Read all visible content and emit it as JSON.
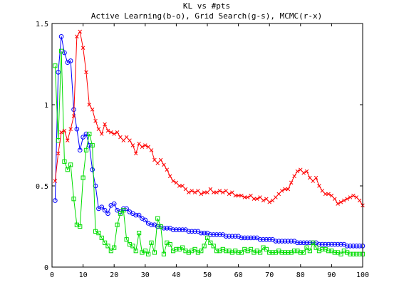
{
  "chart_data": {
    "type": "line",
    "title": "KL vs #pts",
    "subtitle": "Active Learning(b-o), Grid Search(g-s), MCMC(r-x)",
    "xlabel": "",
    "ylabel": "",
    "xlim": [
      0,
      100
    ],
    "ylim": [
      0,
      1.5
    ],
    "grid": false,
    "x_ticks": [
      0,
      10,
      20,
      30,
      40,
      50,
      60,
      70,
      80,
      90,
      100
    ],
    "y_ticks": [
      0,
      0.5,
      1,
      1.5
    ],
    "x_tick_labels": [
      "0",
      "10",
      "20",
      "30",
      "40",
      "50",
      "60",
      "70",
      "80",
      "90",
      "100"
    ],
    "y_tick_labels": [
      "0",
      "0.5",
      "1",
      "1.5"
    ],
    "series": [
      {
        "color": "#0000ff",
        "marker": "circle",
        "x": [
          1,
          2,
          3,
          4,
          5,
          6,
          7,
          8,
          9,
          10,
          11,
          12,
          13,
          14,
          15,
          16,
          17,
          18,
          19,
          20,
          21,
          22,
          23,
          24,
          25,
          26,
          27,
          28,
          29,
          30,
          31,
          32,
          33,
          34,
          35,
          36,
          37,
          38,
          39,
          40,
          41,
          42,
          43,
          44,
          45,
          46,
          47,
          48,
          49,
          50,
          51,
          52,
          53,
          54,
          55,
          56,
          57,
          58,
          59,
          60,
          61,
          62,
          63,
          64,
          65,
          66,
          67,
          68,
          69,
          70,
          71,
          72,
          73,
          74,
          75,
          76,
          77,
          78,
          79,
          80,
          81,
          82,
          83,
          84,
          85,
          86,
          87,
          88,
          89,
          90,
          91,
          92,
          93,
          94,
          95,
          96,
          97,
          98,
          99,
          100
        ],
        "y": [
          0.41,
          1.2,
          1.42,
          1.32,
          1.26,
          1.27,
          0.97,
          0.85,
          0.72,
          0.8,
          0.82,
          0.75,
          0.6,
          0.5,
          0.36,
          0.37,
          0.35,
          0.33,
          0.38,
          0.39,
          0.35,
          0.34,
          0.36,
          0.36,
          0.34,
          0.33,
          0.32,
          0.32,
          0.3,
          0.29,
          0.27,
          0.26,
          0.26,
          0.25,
          0.25,
          0.24,
          0.24,
          0.24,
          0.23,
          0.23,
          0.23,
          0.23,
          0.23,
          0.22,
          0.22,
          0.22,
          0.22,
          0.21,
          0.21,
          0.21,
          0.2,
          0.2,
          0.2,
          0.2,
          0.2,
          0.19,
          0.19,
          0.19,
          0.19,
          0.19,
          0.18,
          0.18,
          0.18,
          0.18,
          0.18,
          0.18,
          0.17,
          0.17,
          0.17,
          0.17,
          0.17,
          0.16,
          0.16,
          0.16,
          0.16,
          0.16,
          0.16,
          0.16,
          0.15,
          0.15,
          0.15,
          0.15,
          0.15,
          0.15,
          0.15,
          0.14,
          0.14,
          0.14,
          0.14,
          0.14,
          0.14,
          0.14,
          0.14,
          0.14,
          0.13,
          0.13,
          0.13,
          0.13,
          0.13,
          0.13
        ]
      },
      {
        "color": "#00dd00",
        "marker": "square",
        "x": [
          1,
          2,
          3,
          4,
          5,
          6,
          7,
          8,
          9,
          10,
          11,
          12,
          13,
          14,
          15,
          16,
          17,
          18,
          19,
          20,
          21,
          22,
          23,
          24,
          25,
          26,
          27,
          28,
          29,
          30,
          31,
          32,
          33,
          34,
          35,
          36,
          37,
          38,
          39,
          40,
          41,
          42,
          43,
          44,
          45,
          46,
          47,
          48,
          49,
          50,
          51,
          52,
          53,
          54,
          55,
          56,
          57,
          58,
          59,
          60,
          61,
          62,
          63,
          64,
          65,
          66,
          67,
          68,
          69,
          70,
          71,
          72,
          73,
          74,
          75,
          76,
          77,
          78,
          79,
          80,
          81,
          82,
          83,
          84,
          85,
          86,
          87,
          88,
          89,
          90,
          91,
          92,
          93,
          94,
          95,
          96,
          97,
          98,
          99,
          100
        ],
        "y": [
          1.24,
          0.78,
          1.33,
          0.65,
          0.6,
          0.63,
          0.42,
          0.26,
          0.25,
          0.55,
          0.72,
          0.82,
          0.75,
          0.22,
          0.21,
          0.18,
          0.15,
          0.13,
          0.1,
          0.12,
          0.26,
          0.33,
          0.35,
          0.17,
          0.14,
          0.13,
          0.1,
          0.21,
          0.09,
          0.1,
          0.08,
          0.15,
          0.09,
          0.3,
          0.25,
          0.08,
          0.15,
          0.14,
          0.1,
          0.11,
          0.11,
          0.12,
          0.1,
          0.09,
          0.1,
          0.11,
          0.09,
          0.1,
          0.13,
          0.18,
          0.15,
          0.13,
          0.1,
          0.1,
          0.11,
          0.1,
          0.1,
          0.09,
          0.1,
          0.09,
          0.09,
          0.11,
          0.1,
          0.11,
          0.09,
          0.1,
          0.09,
          0.12,
          0.11,
          0.09,
          0.09,
          0.09,
          0.1,
          0.09,
          0.09,
          0.09,
          0.09,
          0.1,
          0.1,
          0.09,
          0.09,
          0.12,
          0.1,
          0.15,
          0.12,
          0.1,
          0.11,
          0.11,
          0.1,
          0.1,
          0.09,
          0.09,
          0.08,
          0.1,
          0.09,
          0.08,
          0.08,
          0.08,
          0.08,
          0.08
        ]
      },
      {
        "color": "#ff0000",
        "marker": "x",
        "x": [
          1,
          2,
          3,
          4,
          5,
          6,
          7,
          8,
          9,
          10,
          11,
          12,
          13,
          14,
          15,
          16,
          17,
          18,
          19,
          20,
          21,
          22,
          23,
          24,
          25,
          26,
          27,
          28,
          29,
          30,
          31,
          32,
          33,
          34,
          35,
          36,
          37,
          38,
          39,
          40,
          41,
          42,
          43,
          44,
          45,
          46,
          47,
          48,
          49,
          50,
          51,
          52,
          53,
          54,
          55,
          56,
          57,
          58,
          59,
          60,
          61,
          62,
          63,
          64,
          65,
          66,
          67,
          68,
          69,
          70,
          71,
          72,
          73,
          74,
          75,
          76,
          77,
          78,
          79,
          80,
          81,
          82,
          83,
          84,
          85,
          86,
          87,
          88,
          89,
          90,
          91,
          92,
          93,
          94,
          95,
          96,
          97,
          98,
          99,
          100
        ],
        "y": [
          0.53,
          0.7,
          0.83,
          0.84,
          0.78,
          0.85,
          0.93,
          1.42,
          1.45,
          1.35,
          1.2,
          1.0,
          0.97,
          0.9,
          0.85,
          0.82,
          0.88,
          0.84,
          0.83,
          0.82,
          0.83,
          0.8,
          0.78,
          0.8,
          0.78,
          0.75,
          0.7,
          0.76,
          0.74,
          0.75,
          0.74,
          0.72,
          0.66,
          0.64,
          0.66,
          0.63,
          0.6,
          0.56,
          0.53,
          0.52,
          0.5,
          0.5,
          0.48,
          0.46,
          0.47,
          0.46,
          0.47,
          0.45,
          0.46,
          0.46,
          0.48,
          0.46,
          0.46,
          0.47,
          0.46,
          0.47,
          0.45,
          0.46,
          0.44,
          0.44,
          0.44,
          0.43,
          0.43,
          0.44,
          0.42,
          0.42,
          0.43,
          0.41,
          0.42,
          0.4,
          0.41,
          0.43,
          0.45,
          0.47,
          0.48,
          0.48,
          0.52,
          0.56,
          0.59,
          0.6,
          0.58,
          0.59,
          0.55,
          0.53,
          0.55,
          0.5,
          0.47,
          0.45,
          0.45,
          0.44,
          0.42,
          0.39,
          0.4,
          0.41,
          0.42,
          0.43,
          0.44,
          0.43,
          0.41,
          0.38
        ]
      }
    ]
  }
}
